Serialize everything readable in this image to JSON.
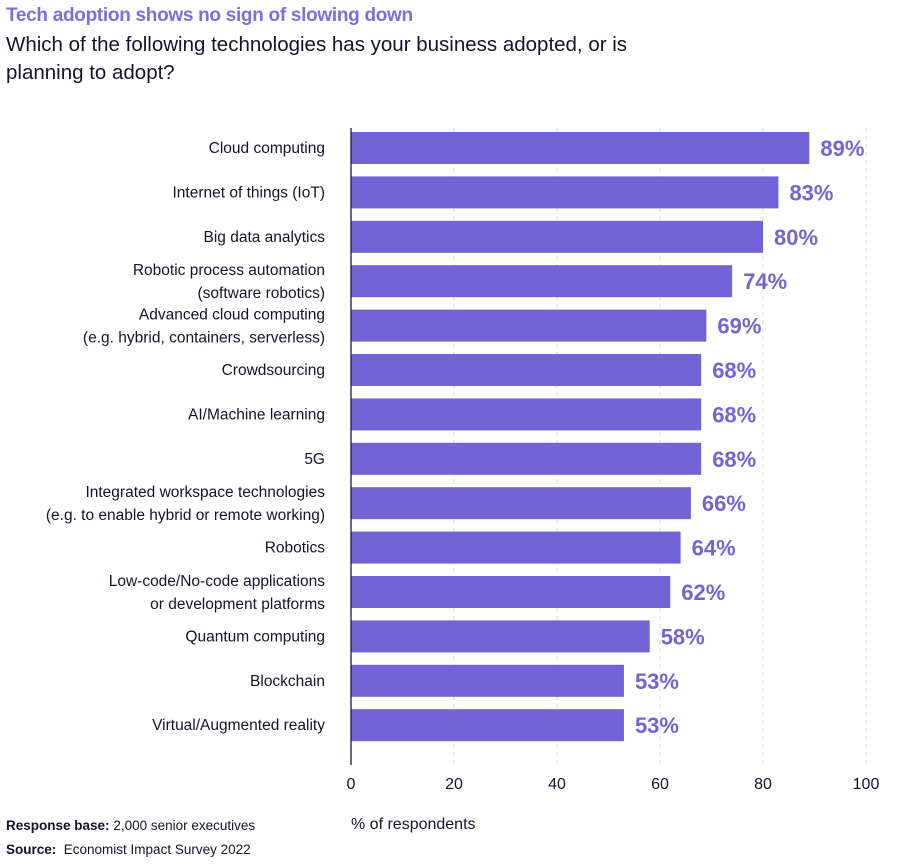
{
  "title": "Tech adoption shows no sign of slowing down",
  "subtitle": "Which of the following technologies has your business adopted, or is planning to adopt?",
  "footer": {
    "response_base_label": "Response base:",
    "response_base_value": "2,000 senior executives",
    "source_label": "Source:",
    "source_value": "Economist Impact Survey 2022"
  },
  "colors": {
    "bar": "#7264d6",
    "label": "#7264d6",
    "title": "#7d6ee0"
  },
  "chart_data": {
    "type": "bar",
    "orientation": "horizontal",
    "categories": [
      [
        "Cloud computing"
      ],
      [
        "Internet of things (IoT)"
      ],
      [
        "Big data analytics"
      ],
      [
        "Robotic process automation",
        "(software robotics)"
      ],
      [
        "Advanced cloud computing",
        "(e.g. hybrid, containers, serverless)"
      ],
      [
        "Crowdsourcing"
      ],
      [
        "AI/Machine learning"
      ],
      [
        "5G"
      ],
      [
        "Integrated workspace technologies",
        "(e.g. to enable hybrid or remote working)"
      ],
      [
        "Robotics"
      ],
      [
        "Low-code/No-code applications",
        "or development platforms"
      ],
      [
        "Quantum computing"
      ],
      [
        "Blockchain"
      ],
      [
        "Virtual/Augmented reality"
      ]
    ],
    "values": [
      89,
      83,
      80,
      74,
      69,
      68,
      68,
      68,
      66,
      64,
      62,
      58,
      53,
      53
    ],
    "data_labels": [
      "89%",
      "83%",
      "80%",
      "74%",
      "69%",
      "68%",
      "68%",
      "68%",
      "66%",
      "64%",
      "62%",
      "58%",
      "53%",
      "53%"
    ],
    "xlabel": "% of respondents",
    "xlim": [
      0,
      100
    ],
    "xticks": [
      0,
      20,
      40,
      60,
      80,
      100
    ],
    "grid": "vertical dashed"
  }
}
